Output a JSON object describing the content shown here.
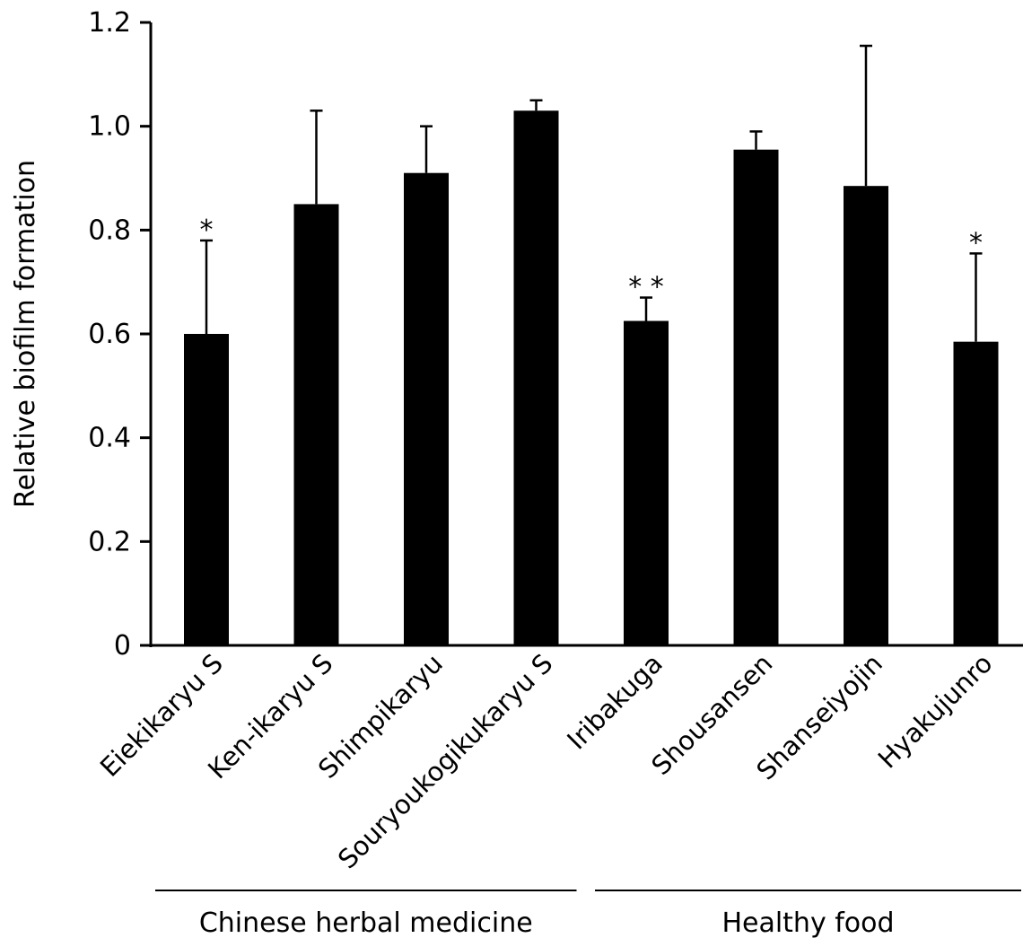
{
  "chart_data": {
    "type": "bar",
    "categories": [
      "Eiekikaryu S",
      "Ken-ikaryu S",
      "Shimpikaryu",
      "Souryoukogikukaryu S",
      "Iribakuga",
      "Shousansen",
      "Shanseiyojin",
      "Hyakujunro"
    ],
    "values": [
      0.6,
      0.85,
      0.91,
      1.03,
      0.625,
      0.955,
      0.885,
      0.585
    ],
    "error_upper": [
      0.18,
      0.18,
      0.09,
      0.02,
      0.045,
      0.035,
      0.27,
      0.17
    ],
    "significance": [
      "*",
      "",
      "",
      "",
      "**",
      "",
      "",
      "*"
    ],
    "ylabel": "Relative biofilm formation",
    "xlabel": "",
    "ylim": [
      0,
      1.2
    ],
    "yticks": [
      "0",
      "0.2",
      "0.4",
      "0.6",
      "0.8",
      "1.0",
      "1.2"
    ],
    "grid": false,
    "bar_color": "#000000",
    "groups": [
      {
        "label": "Chinese herbal medicine",
        "members": [
          0,
          1,
          2,
          3
        ]
      },
      {
        "label": "Healthy food",
        "members": [
          4,
          5,
          6,
          7
        ]
      }
    ]
  }
}
